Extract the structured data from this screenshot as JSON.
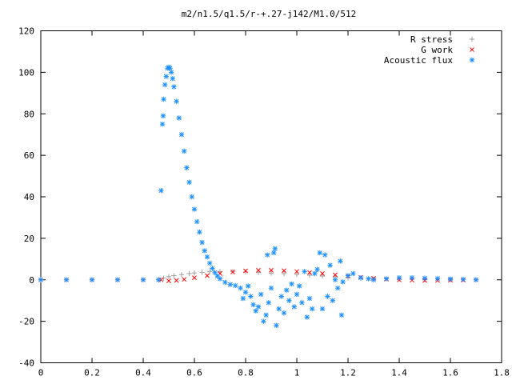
{
  "chart_data": {
    "type": "scatter",
    "title": "m2/n1.5/q1.5/r-+.27-j142/M1.0/512",
    "xlabel": "",
    "ylabel": "",
    "xlim": [
      0,
      1.8
    ],
    "ylim": [
      -40,
      120
    ],
    "xticks": [
      0,
      0.2,
      0.4,
      0.6,
      0.8,
      1,
      1.2,
      1.4,
      1.6,
      1.8
    ],
    "xtick_labels": [
      "0",
      "0.2",
      "0.4",
      "0.6",
      "0.8",
      "1",
      "1.2",
      "1.4",
      "1.6",
      "1.8"
    ],
    "yticks": [
      -40,
      -20,
      0,
      20,
      40,
      60,
      80,
      100,
      120
    ],
    "ytick_labels": [
      "-40",
      "-20",
      "0",
      "20",
      "40",
      "60",
      "80",
      "100",
      "120"
    ],
    "grid": false,
    "legend_position": "top-right",
    "series": [
      {
        "name": "R stress",
        "marker": "plus",
        "color": "#a0a0a0",
        "points": [
          [
            0.0,
            0
          ],
          [
            0.1,
            0
          ],
          [
            0.2,
            0
          ],
          [
            0.3,
            0
          ],
          [
            0.4,
            0
          ],
          [
            0.46,
            0
          ],
          [
            0.48,
            0.8
          ],
          [
            0.5,
            1.5
          ],
          [
            0.52,
            2.0
          ],
          [
            0.55,
            2.5
          ],
          [
            0.58,
            3.0
          ],
          [
            0.6,
            3.3
          ],
          [
            0.63,
            3.6
          ],
          [
            0.66,
            3.9
          ],
          [
            0.7,
            4.0
          ],
          [
            0.75,
            4.0
          ],
          [
            0.8,
            3.8
          ],
          [
            0.85,
            3.5
          ],
          [
            0.9,
            3.2
          ],
          [
            0.95,
            3.0
          ],
          [
            1.0,
            2.6
          ],
          [
            1.05,
            2.2
          ],
          [
            1.1,
            1.8
          ],
          [
            1.15,
            1.4
          ],
          [
            1.2,
            1.0
          ],
          [
            1.25,
            0.7
          ],
          [
            1.3,
            0.4
          ],
          [
            1.4,
            0.2
          ],
          [
            1.5,
            0.1
          ],
          [
            1.6,
            0.05
          ],
          [
            1.7,
            0
          ]
        ]
      },
      {
        "name": "G work",
        "marker": "cross",
        "color": "#ff0000",
        "points": [
          [
            0.0,
            0
          ],
          [
            0.1,
            0
          ],
          [
            0.2,
            0
          ],
          [
            0.3,
            0
          ],
          [
            0.4,
            0
          ],
          [
            0.47,
            0
          ],
          [
            0.5,
            -0.5
          ],
          [
            0.53,
            -0.3
          ],
          [
            0.56,
            0.2
          ],
          [
            0.6,
            1.0
          ],
          [
            0.65,
            2.0
          ],
          [
            0.7,
            3.0
          ],
          [
            0.75,
            3.8
          ],
          [
            0.8,
            4.3
          ],
          [
            0.85,
            4.6
          ],
          [
            0.9,
            4.6
          ],
          [
            0.95,
            4.4
          ],
          [
            1.0,
            4.0
          ],
          [
            1.05,
            3.5
          ],
          [
            1.1,
            3.0
          ],
          [
            1.15,
            2.4
          ],
          [
            1.2,
            1.8
          ],
          [
            1.25,
            1.2
          ],
          [
            1.3,
            0.7
          ],
          [
            1.35,
            0.3
          ],
          [
            1.4,
            0.0
          ],
          [
            1.45,
            -0.2
          ],
          [
            1.5,
            -0.3
          ],
          [
            1.55,
            -0.3
          ],
          [
            1.6,
            -0.2
          ],
          [
            1.65,
            -0.1
          ],
          [
            1.7,
            0
          ]
        ]
      },
      {
        "name": "Acoustic flux",
        "marker": "star",
        "color": "#1e90ff",
        "points": [
          [
            0.0,
            0
          ],
          [
            0.1,
            0
          ],
          [
            0.2,
            0
          ],
          [
            0.3,
            0
          ],
          [
            0.4,
            0
          ],
          [
            0.46,
            0
          ],
          [
            0.47,
            43
          ],
          [
            0.475,
            75
          ],
          [
            0.478,
            79
          ],
          [
            0.48,
            87
          ],
          [
            0.485,
            94
          ],
          [
            0.49,
            98
          ],
          [
            0.495,
            102
          ],
          [
            0.5,
            102.5
          ],
          [
            0.505,
            102
          ],
          [
            0.51,
            100
          ],
          [
            0.515,
            97
          ],
          [
            0.52,
            93
          ],
          [
            0.53,
            86
          ],
          [
            0.54,
            78
          ],
          [
            0.55,
            70
          ],
          [
            0.56,
            62
          ],
          [
            0.57,
            54
          ],
          [
            0.58,
            47
          ],
          [
            0.59,
            40
          ],
          [
            0.6,
            34
          ],
          [
            0.61,
            28
          ],
          [
            0.62,
            23
          ],
          [
            0.63,
            18
          ],
          [
            0.64,
            14
          ],
          [
            0.65,
            11
          ],
          [
            0.66,
            8
          ],
          [
            0.67,
            5.5
          ],
          [
            0.68,
            3.5
          ],
          [
            0.69,
            1.8
          ],
          [
            0.7,
            0.5
          ],
          [
            0.72,
            -1.2
          ],
          [
            0.74,
            -2.3
          ],
          [
            0.76,
            -2.8
          ],
          [
            0.78,
            -4
          ],
          [
            0.8,
            -6
          ],
          [
            0.79,
            -9
          ],
          [
            0.81,
            -3
          ],
          [
            0.82,
            -8
          ],
          [
            0.83,
            -12
          ],
          [
            0.84,
            -15
          ],
          [
            0.85,
            -13
          ],
          [
            0.86,
            -7
          ],
          [
            0.87,
            -20
          ],
          [
            0.88,
            -17
          ],
          [
            0.885,
            12
          ],
          [
            0.89,
            -11
          ],
          [
            0.9,
            -4
          ],
          [
            0.91,
            13
          ],
          [
            0.915,
            15
          ],
          [
            0.92,
            -22
          ],
          [
            0.93,
            -14
          ],
          [
            0.94,
            -8
          ],
          [
            0.95,
            -16
          ],
          [
            0.96,
            -5
          ],
          [
            0.97,
            -10
          ],
          [
            0.98,
            -2
          ],
          [
            0.99,
            -13
          ],
          [
            1.0,
            -7
          ],
          [
            1.01,
            -3
          ],
          [
            1.02,
            -11
          ],
          [
            1.03,
            4
          ],
          [
            1.04,
            -18
          ],
          [
            1.05,
            -9
          ],
          [
            1.06,
            -14
          ],
          [
            1.07,
            3
          ],
          [
            1.08,
            5
          ],
          [
            1.09,
            13
          ],
          [
            1.1,
            -14
          ],
          [
            1.11,
            12
          ],
          [
            1.12,
            -8
          ],
          [
            1.13,
            7
          ],
          [
            1.14,
            -10
          ],
          [
            1.15,
            0
          ],
          [
            1.16,
            -4
          ],
          [
            1.17,
            9
          ],
          [
            1.175,
            -17
          ],
          [
            1.18,
            -1
          ],
          [
            1.2,
            2
          ],
          [
            1.22,
            3
          ],
          [
            1.25,
            1
          ],
          [
            1.28,
            0.5
          ],
          [
            1.3,
            0
          ],
          [
            1.35,
            0.5
          ],
          [
            1.4,
            1
          ],
          [
            1.45,
            1
          ],
          [
            1.5,
            0.8
          ],
          [
            1.55,
            0.6
          ],
          [
            1.6,
            0.4
          ],
          [
            1.65,
            0.2
          ],
          [
            1.7,
            0
          ]
        ]
      }
    ]
  }
}
